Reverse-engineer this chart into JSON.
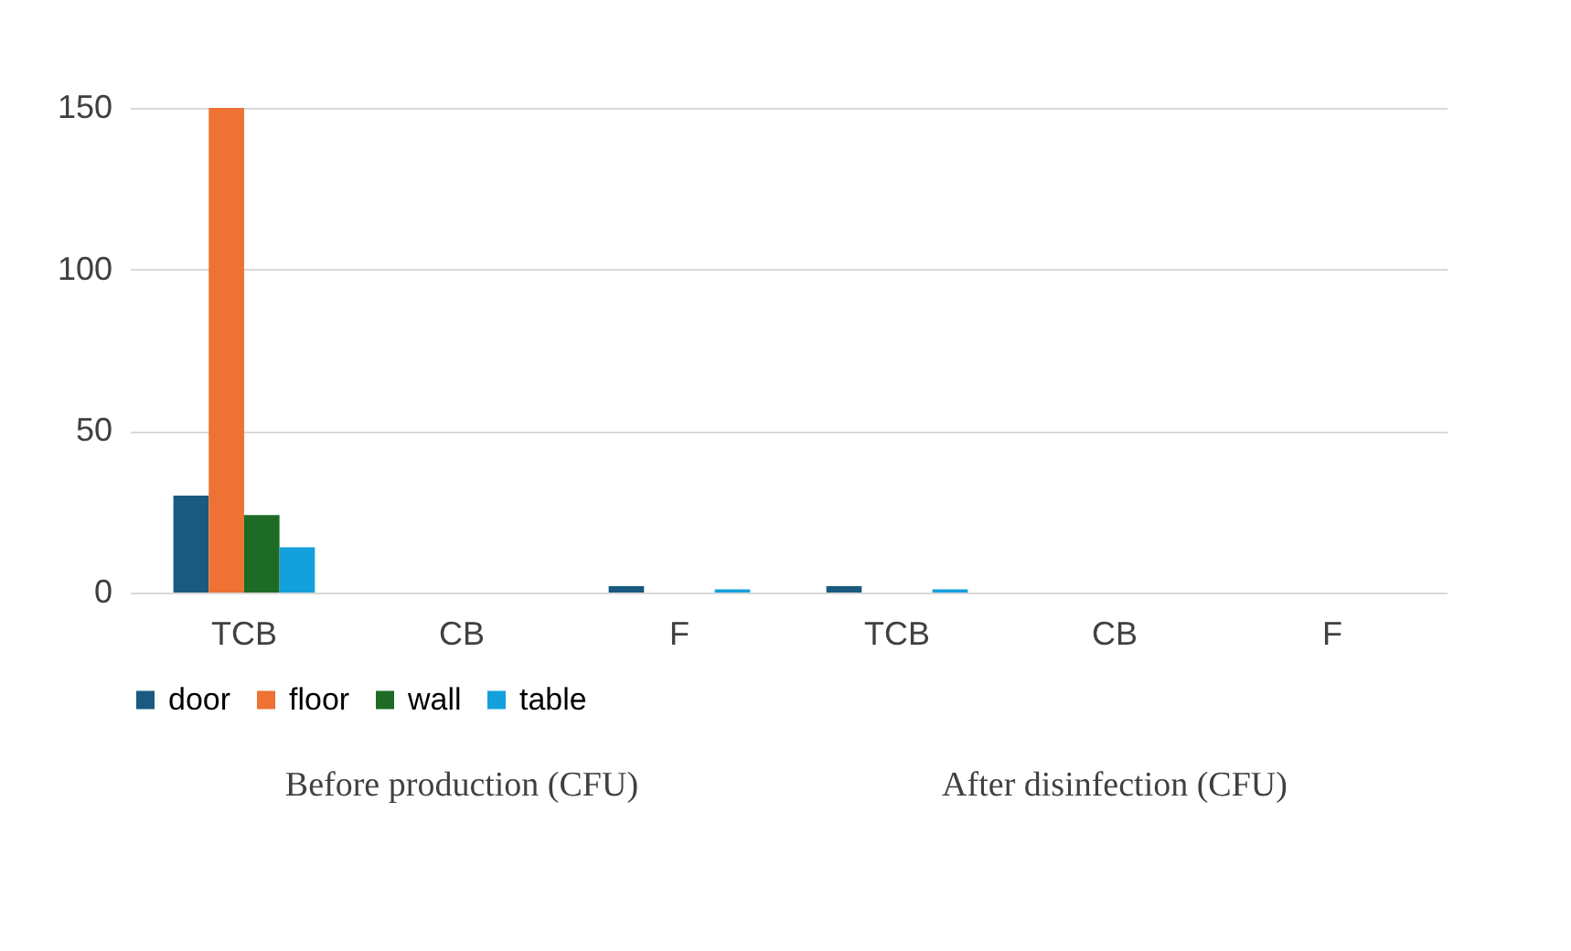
{
  "chart_data": {
    "type": "bar",
    "categories": [
      "TCB",
      "CB",
      "F",
      "TCB",
      "CB",
      "F"
    ],
    "series": [
      {
        "name": "door",
        "color": "#1a5a80",
        "values": [
          30,
          0,
          2,
          2,
          0,
          0
        ]
      },
      {
        "name": "floor",
        "color": "#ed7233",
        "values": [
          150,
          0,
          0,
          0,
          0,
          0
        ]
      },
      {
        "name": "wall",
        "color": "#1e6b26",
        "values": [
          24,
          0,
          0,
          0,
          0,
          0
        ]
      },
      {
        "name": "table",
        "color": "#14a0dc",
        "values": [
          14,
          0,
          1,
          1,
          0,
          0
        ]
      }
    ],
    "annotations": [
      "Before production (CFU)",
      "After disinfection (CFU)"
    ],
    "ylim": [
      0,
      150
    ],
    "yticks": [
      0,
      50,
      100,
      150
    ],
    "grid": "y",
    "legend": "bottom"
  }
}
